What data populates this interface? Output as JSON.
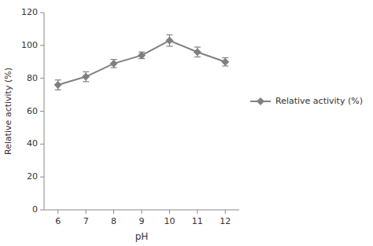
{
  "chart_data": {
    "type": "line",
    "x": [
      6,
      7,
      8,
      9,
      10,
      11,
      12
    ],
    "series": [
      {
        "name": "Relative activity (%)",
        "color": "#808080",
        "marker": "diamond",
        "values": [
          76,
          81,
          89,
          94,
          103,
          96,
          90
        ],
        "yerr": [
          3,
          3,
          2.5,
          2,
          3.5,
          3,
          2.5
        ]
      }
    ],
    "xlabel": "pH",
    "ylabel": "Relative activity (%)",
    "xlim": [
      5.5,
      12.5
    ],
    "xticks": [
      6,
      7,
      8,
      9,
      10,
      11,
      12
    ],
    "ylim": [
      0,
      120
    ],
    "yticks": [
      0,
      20,
      40,
      60,
      80,
      100,
      120
    ],
    "grid": false,
    "legend": "right"
  }
}
